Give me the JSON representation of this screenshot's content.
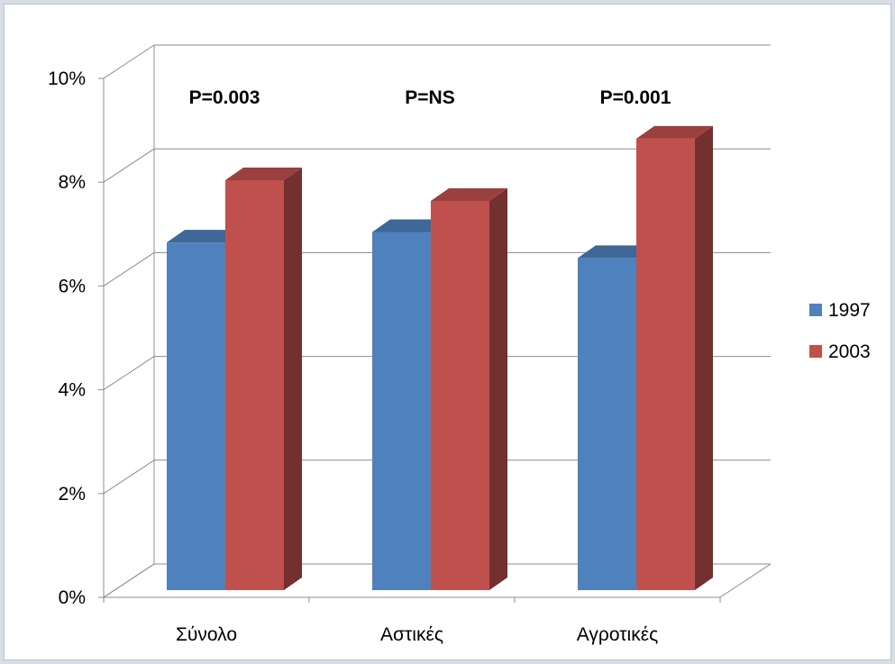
{
  "chart_data": {
    "type": "bar",
    "title": "",
    "xlabel": "",
    "ylabel": "",
    "categories": [
      "Σύνολο",
      "Αστικές",
      "Αγροτικές"
    ],
    "series": [
      {
        "name": "1997",
        "values": [
          6.7,
          6.9,
          6.4
        ],
        "color": "#4f81bd"
      },
      {
        "name": "2003",
        "values": [
          7.9,
          7.5,
          8.7
        ],
        "color": "#c0504d"
      }
    ],
    "ylim": [
      0,
      10
    ],
    "yticks": [
      "0%",
      "2%",
      "4%",
      "6%",
      "8%",
      "10%"
    ],
    "annotations": [
      "P=0.003",
      "P=NS",
      "P=0.001"
    ],
    "grid": true,
    "legend_position": "right",
    "style": "3d-clustered-column"
  }
}
